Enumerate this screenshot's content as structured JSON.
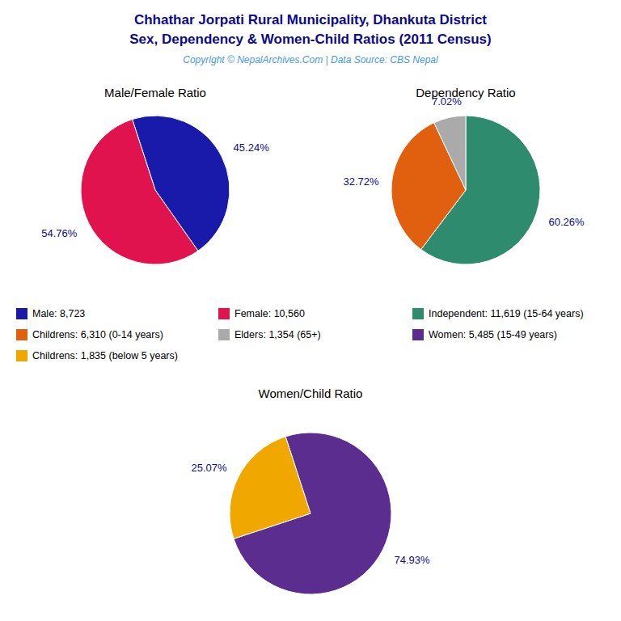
{
  "title": "Chhathar Jorpati Rural Municipality, Dhankuta District",
  "subtitle": "Sex, Dependency & Women-Child Ratios (2011 Census)",
  "annotations": [
    "Copyright © NepalArchives.Com | Data Source: CBS Nepal"
  ],
  "chart_data": [
    {
      "type": "pie",
      "title": "Male/Female Ratio",
      "categories": [
        "Male: 8,723",
        "Female: 10,560"
      ],
      "values": [
        45.24,
        54.76
      ],
      "value_labels": [
        "45.24%",
        "54.76%"
      ],
      "colors": [
        "#1a1aaa",
        "#e0134f"
      ],
      "data_labels": true,
      "legend": "bottom"
    },
    {
      "type": "pie",
      "title": "Dependency Ratio",
      "categories": [
        "Independent: 11,619 (15-64 years)",
        "Childrens: 6,310 (0-14 years)",
        "Elders: 1,354 (65+)"
      ],
      "values": [
        60.26,
        32.72,
        7.02
      ],
      "value_labels": [
        "60.26%",
        "32.72%",
        "7.02%"
      ],
      "colors": [
        "#2e8b6e",
        "#e06010",
        "#aaaaaa"
      ],
      "data_labels": true,
      "legend": "bottom"
    },
    {
      "type": "pie",
      "title": "Women/Child Ratio",
      "categories": [
        "Women: 5,485 (15-49 years)",
        "Childrens: 1,835 (below 5 years)"
      ],
      "values": [
        74.93,
        25.07
      ],
      "value_labels": [
        "74.93%",
        "25.07%"
      ],
      "colors": [
        "#5b2d8e",
        "#f0a800"
      ],
      "data_labels": true,
      "legend": "top"
    }
  ]
}
